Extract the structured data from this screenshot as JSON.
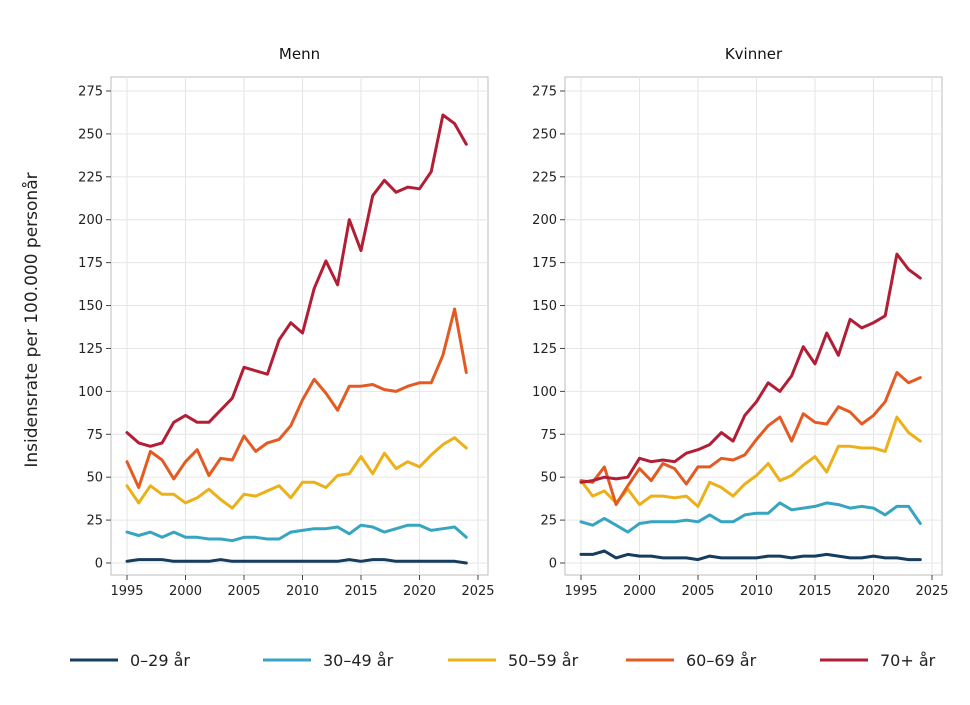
{
  "chart_data": {
    "type": "line",
    "ylabel": "Insidensrate per 100.000 personår",
    "x": [
      1995,
      1996,
      1997,
      1998,
      1999,
      2000,
      2001,
      2002,
      2003,
      2004,
      2005,
      2006,
      2007,
      2008,
      2009,
      2010,
      2011,
      2012,
      2013,
      2014,
      2015,
      2016,
      2017,
      2018,
      2019,
      2020,
      2021,
      2022,
      2023,
      2024
    ],
    "xticks": [
      "1995",
      "2000",
      "2005",
      "2010",
      "2015",
      "2020",
      "2025"
    ],
    "yticks": [
      "0",
      "25",
      "50",
      "75",
      "100",
      "125",
      "150",
      "175",
      "200",
      "225",
      "250",
      "275"
    ],
    "xlim": [
      1995,
      2025
    ],
    "ylim": [
      0,
      275
    ],
    "grid": true,
    "legend_position": "bottom",
    "series_meta": [
      {
        "name": "0–29 år",
        "color": "#163c5e"
      },
      {
        "name": "30–49 år",
        "color": "#37a5c1"
      },
      {
        "name": "50–59 år",
        "color": "#ecb019"
      },
      {
        "name": "60–69 år",
        "color": "#e35b22"
      },
      {
        "name": "70+ år",
        "color": "#b21e35"
      }
    ],
    "panels": [
      {
        "title": "Menn",
        "series": [
          {
            "name": "0–29 år",
            "values": [
              1,
              2,
              2,
              2,
              1,
              1,
              1,
              1,
              2,
              1,
              1,
              1,
              1,
              1,
              1,
              1,
              1,
              1,
              1,
              2,
              1,
              2,
              2,
              1,
              1,
              1,
              1,
              1,
              1,
              0
            ]
          },
          {
            "name": "30–49 år",
            "values": [
              18,
              16,
              18,
              15,
              18,
              15,
              15,
              14,
              14,
              13,
              15,
              15,
              14,
              14,
              18,
              19,
              20,
              20,
              21,
              17,
              22,
              21,
              18,
              20,
              22,
              22,
              19,
              20,
              21,
              15
            ]
          },
          {
            "name": "50–59 år",
            "values": [
              45,
              35,
              45,
              40,
              40,
              35,
              38,
              43,
              37,
              32,
              40,
              39,
              42,
              45,
              38,
              47,
              47,
              44,
              51,
              52,
              62,
              52,
              64,
              55,
              59,
              56,
              63,
              69,
              73,
              67
            ]
          },
          {
            "name": "60–69 år",
            "values": [
              59,
              44,
              65,
              60,
              49,
              59,
              66,
              51,
              61,
              60,
              74,
              65,
              70,
              72,
              80,
              95,
              107,
              99,
              89,
              103,
              103,
              104,
              101,
              100,
              103,
              105,
              105,
              121,
              148,
              111
            ]
          },
          {
            "name": "70+ år",
            "values": [
              76,
              70,
              68,
              70,
              82,
              86,
              82,
              82,
              89,
              96,
              114,
              112,
              110,
              130,
              140,
              134,
              160,
              176,
              162,
              200,
              182,
              214,
              223,
              216,
              219,
              218,
              228,
              261,
              256,
              244
            ]
          }
        ]
      },
      {
        "title": "Kvinner",
        "series": [
          {
            "name": "0–29 år",
            "values": [
              5,
              5,
              7,
              3,
              5,
              4,
              4,
              3,
              3,
              3,
              2,
              4,
              3,
              3,
              3,
              3,
              4,
              4,
              3,
              4,
              4,
              5,
              4,
              3,
              3,
              4,
              3,
              3,
              2,
              2
            ]
          },
          {
            "name": "30–49 år",
            "values": [
              24,
              22,
              26,
              22,
              18,
              23,
              24,
              24,
              24,
              25,
              24,
              28,
              24,
              24,
              28,
              29,
              29,
              35,
              31,
              32,
              33,
              35,
              34,
              32,
              33,
              32,
              28,
              33,
              33,
              23
            ]
          },
          {
            "name": "50–59 år",
            "values": [
              48,
              39,
              42,
              35,
              43,
              34,
              39,
              39,
              38,
              39,
              33,
              47,
              44,
              39,
              46,
              51,
              58,
              48,
              51,
              57,
              62,
              53,
              68,
              68,
              67,
              67,
              65,
              85,
              76,
              71
            ]
          },
          {
            "name": "60–69 år",
            "values": [
              48,
              47,
              56,
              34,
              45,
              55,
              48,
              58,
              55,
              46,
              56,
              56,
              61,
              60,
              63,
              72,
              80,
              85,
              71,
              87,
              82,
              81,
              91,
              88,
              81,
              86,
              94,
              111,
              105,
              108
            ]
          },
          {
            "name": "70+ år",
            "values": [
              47,
              48,
              50,
              49,
              50,
              61,
              59,
              60,
              59,
              64,
              66,
              69,
              76,
              71,
              86,
              94,
              105,
              100,
              109,
              126,
              116,
              134,
              121,
              142,
              137,
              140,
              144,
              180,
              171,
              166
            ]
          }
        ]
      }
    ]
  }
}
